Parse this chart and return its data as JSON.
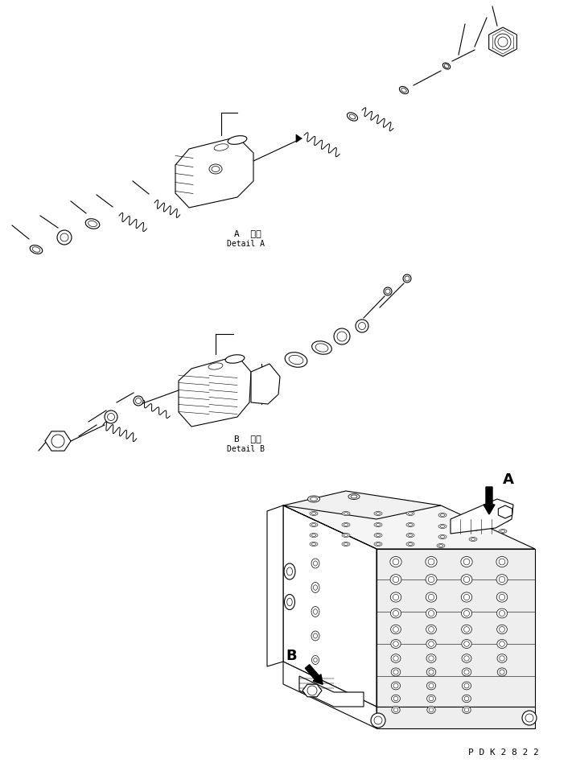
{
  "background_color": "#ffffff",
  "line_color": "#000000",
  "label_A": "A",
  "label_B": "B",
  "detail_A_jp": "A  詳細",
  "detail_A_en": "Detail A",
  "detail_B_jp": "B  詳細",
  "detail_B_en": "Detail B",
  "part_code": "P D K 2 8 2 2",
  "fig_width": 7.11,
  "fig_height": 9.48,
  "dpi": 100
}
